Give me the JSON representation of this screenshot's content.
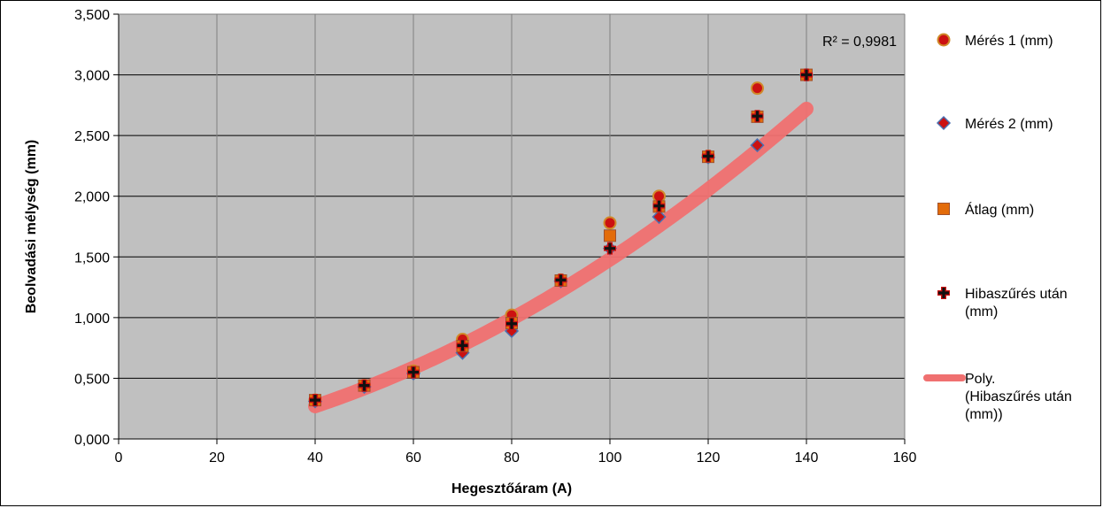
{
  "chart_data": {
    "type": "scatter",
    "title": "",
    "xlabel": "Hegesztőáram (A)",
    "ylabel": "Beolvadási mélység (mm)",
    "xlim": [
      0,
      160
    ],
    "ylim": [
      0,
      3.5
    ],
    "x_ticks": [
      0,
      20,
      40,
      60,
      80,
      100,
      120,
      140,
      160
    ],
    "y_ticks": [
      0,
      0.5,
      1.0,
      1.5,
      2.0,
      2.5,
      3.0,
      3.5
    ],
    "y_tick_labels": [
      "0,000",
      "0,500",
      "1,000",
      "1,500",
      "2,000",
      "2,500",
      "3,000",
      "3,500"
    ],
    "x_tick_labels": [
      "0",
      "20",
      "40",
      "60",
      "80",
      "100",
      "120",
      "140",
      "160"
    ],
    "grid": true,
    "legend_position": "right",
    "annotation": "R² = 0,9981",
    "colors": {
      "plot_bg": "#c0c0c0",
      "grid": "#808080",
      "meres1": "#cc1111",
      "meres1_edge": "#d08a2a",
      "meres2": "#cc1111",
      "meres2_edge": "#4a6fb0",
      "atlag": "#e36c0a",
      "atlag_edge": "#a0522d",
      "hiba": "#111111",
      "hiba_edge": "#cc1111",
      "trend": "#f07070"
    },
    "series": [
      {
        "name": "Mérés 1 (mm)",
        "marker": "circle",
        "x": [
          40,
          50,
          60,
          70,
          80,
          90,
          100,
          110,
          120,
          130,
          140
        ],
        "y": [
          0.32,
          0.44,
          0.56,
          0.82,
          1.02,
          1.31,
          1.78,
          2.0,
          2.33,
          2.89,
          3.0
        ]
      },
      {
        "name": "Mérés 2 (mm)",
        "marker": "diamond",
        "x": [
          40,
          50,
          60,
          70,
          80,
          90,
          100,
          110,
          120,
          130,
          140
        ],
        "y": [
          0.31,
          0.43,
          0.54,
          0.71,
          0.89,
          1.3,
          1.57,
          1.83,
          2.32,
          2.42,
          3.0
        ]
      },
      {
        "name": "Átlag (mm)",
        "marker": "square",
        "x": [
          40,
          50,
          60,
          70,
          80,
          90,
          100,
          110,
          120,
          130,
          140
        ],
        "y": [
          0.32,
          0.44,
          0.55,
          0.765,
          0.955,
          1.305,
          1.675,
          1.915,
          2.325,
          2.655,
          3.0
        ]
      },
      {
        "name": "Hibaszűrés után (mm)",
        "marker": "plus",
        "x": [
          40,
          50,
          60,
          70,
          80,
          90,
          100,
          110,
          120,
          130,
          140
        ],
        "y": [
          0.32,
          0.44,
          0.55,
          0.77,
          0.95,
          1.31,
          1.57,
          1.92,
          2.33,
          2.66,
          3.0
        ]
      }
    ],
    "trendline": {
      "name": "Poly. (Hibaszűrés után (mm))",
      "type": "polynomial",
      "x_range": [
        40,
        140
      ],
      "coefficients": [
        0.00010844,
        0.004974,
        -0.1021
      ]
    }
  }
}
